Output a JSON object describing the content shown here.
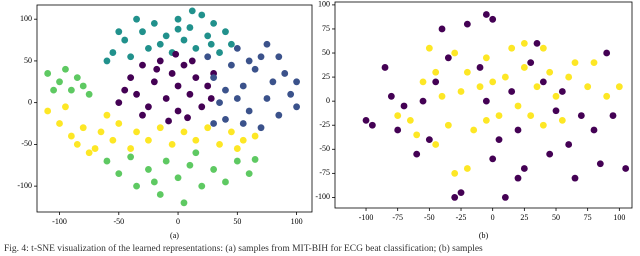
{
  "chart_data": [
    {
      "type": "scatter",
      "label": "(a)",
      "xlim": [
        -119,
        113
      ],
      "ylim": [
        -131,
        117
      ],
      "xticks": [
        -100,
        -50,
        0,
        50,
        100
      ],
      "yticks": [
        -100,
        -50,
        0,
        50,
        100
      ],
      "series": [
        {
          "color": "#21918c",
          "x": [
            -55,
            -45,
            -40,
            -30,
            -25,
            -20,
            -10,
            -5,
            0,
            5,
            10,
            15,
            20,
            25,
            30,
            35,
            -50,
            -35,
            -15,
            0,
            12,
            28,
            40,
            -60,
            45
          ],
          "y": [
            60,
            75,
            55,
            85,
            65,
            95,
            80,
            60,
            100,
            75,
            90,
            65,
            105,
            80,
            95,
            60,
            85,
            100,
            70,
            88,
            110,
            70,
            85,
            50,
            70
          ]
        },
        {
          "color": "#440154",
          "x": [
            -40,
            -35,
            -30,
            -25,
            -20,
            -15,
            -10,
            -5,
            0,
            0,
            5,
            10,
            15,
            20,
            25,
            -30,
            -45,
            -18,
            8,
            28,
            -8,
            30,
            -50,
            12,
            -2
          ],
          "y": [
            30,
            10,
            45,
            -5,
            25,
            50,
            5,
            35,
            -10,
            20,
            45,
            10,
            30,
            -5,
            20,
            -15,
            15,
            40,
            -18,
            5,
            -22,
            35,
            0,
            50,
            58
          ]
        },
        {
          "color": "#3b528b",
          "x": [
            25,
            30,
            35,
            40,
            45,
            50,
            55,
            60,
            65,
            70,
            75,
            80,
            85,
            90,
            95,
            100,
            55,
            70,
            40,
            60,
            85,
            75,
            30,
            50,
            100
          ],
          "y": [
            55,
            30,
            0,
            -20,
            45,
            65,
            20,
            -10,
            40,
            55,
            5,
            25,
            -15,
            35,
            10,
            -5,
            -25,
            -30,
            15,
            50,
            55,
            70,
            -25,
            5,
            25
          ]
        },
        {
          "color": "#5ec962",
          "x": [
            -110,
            -100,
            -95,
            -90,
            -85,
            -80,
            -105,
            -75,
            -60,
            -50,
            -40,
            -35,
            -25,
            -15,
            -10,
            0,
            5,
            10,
            20,
            30,
            40,
            50,
            60,
            65,
            -20,
            15
          ],
          "y": [
            35,
            25,
            40,
            15,
            30,
            20,
            15,
            10,
            -70,
            -85,
            -65,
            -100,
            -80,
            -110,
            -70,
            -90,
            -120,
            -75,
            -100,
            -80,
            -95,
            -70,
            -85,
            -68,
            -95,
            -60
          ]
        },
        {
          "color": "#fde725",
          "x": [
            -110,
            -100,
            -95,
            -90,
            -80,
            -70,
            -65,
            -55,
            -50,
            -40,
            -35,
            -25,
            -15,
            -5,
            5,
            15,
            25,
            35,
            45,
            55,
            65,
            -75,
            -85,
            50,
            -60
          ],
          "y": [
            -10,
            -25,
            -5,
            -40,
            -30,
            -55,
            -35,
            -45,
            -25,
            -55,
            -35,
            -45,
            -30,
            -50,
            -35,
            -45,
            -30,
            -50,
            -35,
            -45,
            -40,
            -60,
            -50,
            -55,
            -15
          ]
        }
      ]
    },
    {
      "type": "scatter",
      "label": "(b)",
      "xlim": [
        -124.5,
        110
      ],
      "ylim": [
        -111,
        103
      ],
      "xticks": [
        -100,
        -75,
        -50,
        -25,
        0,
        25,
        50,
        75,
        100
      ],
      "yticks": [
        -100,
        -75,
        -50,
        -25,
        0,
        25,
        50,
        75,
        100
      ],
      "series": [
        {
          "color": "#440154",
          "x": [
            -100,
            -95,
            -85,
            -80,
            -75,
            -70,
            -60,
            -55,
            -50,
            -45,
            -40,
            -35,
            -30,
            -25,
            -20,
            -10,
            -5,
            0,
            5,
            10,
            15,
            20,
            25,
            30,
            40,
            45,
            50,
            55,
            60,
            65,
            70,
            80,
            85,
            95,
            90,
            105,
            -5,
            0,
            35,
            20
          ],
          "y": [
            -20,
            -25,
            35,
            5,
            -30,
            -5,
            -55,
            0,
            -40,
            20,
            75,
            45,
            -100,
            -95,
            80,
            35,
            0,
            -60,
            -40,
            -100,
            10,
            -30,
            -70,
            40,
            20,
            -55,
            -10,
            10,
            -45,
            -80,
            -15,
            -30,
            -65,
            -15,
            50,
            -70,
            90,
            85,
            60,
            -80
          ]
        },
        {
          "color": "#fde725",
          "x": [
            -75,
            -65,
            -60,
            -55,
            -50,
            -45,
            -40,
            -35,
            -30,
            -25,
            -20,
            -15,
            -10,
            -5,
            0,
            5,
            10,
            15,
            20,
            25,
            30,
            35,
            40,
            45,
            50,
            60,
            65,
            75,
            80,
            90,
            100,
            -30,
            -20,
            -45,
            -5,
            40,
            55,
            25
          ],
          "y": [
            -15,
            -20,
            -35,
            20,
            55,
            30,
            5,
            -25,
            50,
            10,
            30,
            -30,
            15,
            45,
            20,
            -15,
            25,
            55,
            -5,
            35,
            -15,
            15,
            55,
            30,
            5,
            25,
            40,
            15,
            40,
            5,
            15,
            -75,
            -70,
            -45,
            -20,
            -25,
            -20,
            60
          ]
        }
      ]
    }
  ],
  "caption": "Fig. 4: t-SNE visualization of the learned representations: (a) samples from MIT-BIH for ECG beat classification; (b) samples"
}
